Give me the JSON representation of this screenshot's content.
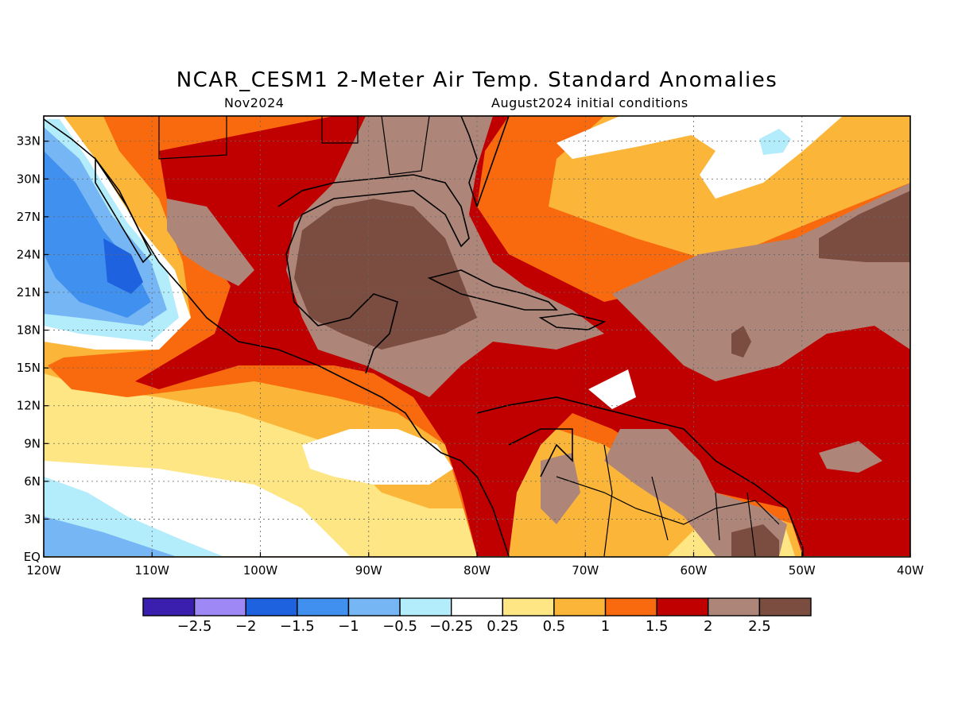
{
  "title": "NCAR_CESM1 2-Meter Air Temp. Standard Anomalies",
  "subtitle_left": "Nov2024",
  "subtitle_right": "August2024 initial conditions",
  "map": {
    "lon_range": [
      -120,
      -40
    ],
    "lat_range": [
      0,
      35
    ],
    "x_ticks": [
      {
        "value": -120,
        "label": "120W"
      },
      {
        "value": -110,
        "label": "110W"
      },
      {
        "value": -100,
        "label": "100W"
      },
      {
        "value": -90,
        "label": "90W"
      },
      {
        "value": -80,
        "label": "80W"
      },
      {
        "value": -70,
        "label": "70W"
      },
      {
        "value": -60,
        "label": "60W"
      },
      {
        "value": -50,
        "label": "50W"
      },
      {
        "value": -40,
        "label": "40W"
      }
    ],
    "y_ticks": [
      {
        "value": 0,
        "label": "EQ"
      },
      {
        "value": 3,
        "label": "3N"
      },
      {
        "value": 6,
        "label": "6N"
      },
      {
        "value": 9,
        "label": "9N"
      },
      {
        "value": 12,
        "label": "12N"
      },
      {
        "value": 15,
        "label": "15N"
      },
      {
        "value": 18,
        "label": "18N"
      },
      {
        "value": 21,
        "label": "21N"
      },
      {
        "value": 24,
        "label": "24N"
      },
      {
        "value": 27,
        "label": "27N"
      },
      {
        "value": 30,
        "label": "30N"
      },
      {
        "value": 33,
        "label": "33N"
      }
    ],
    "grid": true
  },
  "colorbar": {
    "colors": [
      "#3a1fae",
      "#9d88f5",
      "#1f62e0",
      "#3f90ef",
      "#77b6f5",
      "#b3ecfa",
      "#ffffff",
      "#fde683",
      "#fbb63a",
      "#f96a0e",
      "#c00000",
      "#ae8679",
      "#7a4d40"
    ],
    "labels": [
      "-2.5",
      "-2",
      "-1.5",
      "-1",
      "-0.5",
      "-0.25",
      "0.25",
      "0.5",
      "1",
      "1.5",
      "2",
      "2.5"
    ],
    "label_text": [
      "−2.5",
      "−2",
      "−1.5",
      "−1",
      "−0.5",
      "−0.25",
      "0.25",
      "0.5",
      "1",
      "1.5",
      "2",
      "2.5"
    ]
  }
}
